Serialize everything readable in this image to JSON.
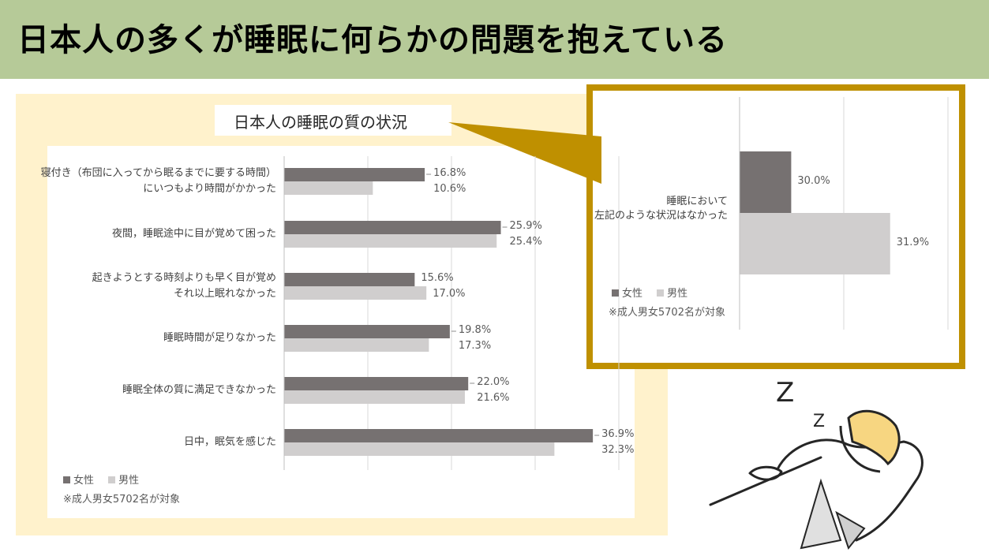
{
  "header": {
    "title": "日本人の多くが睡眠に何らかの問題を抱えている"
  },
  "colors": {
    "female": "#767171",
    "male": "#d0cece",
    "header_bg": "#b6ca98",
    "panel_bg": "#fff2cc",
    "callout_border": "#bf9000"
  },
  "chart_data": [
    {
      "type": "bar",
      "orientation": "horizontal",
      "title": "日本人の睡眠の質の状況",
      "categories": [
        [
          "寝付き（布団に入ってから眠るまでに要する時間）",
          "にいつもより時間がかかった"
        ],
        [
          "夜間，睡眠途中に目が覚めて困った"
        ],
        [
          "起きようとする時刻よりも早く目が覚め",
          "それ以上眠れなかった"
        ],
        [
          "睡眠時間が足りなかった"
        ],
        [
          "睡眠全体の質に満足できなかった"
        ],
        [
          "日中，眠気を感じた"
        ]
      ],
      "series": [
        {
          "name": "女性",
          "values": [
            16.8,
            25.9,
            15.6,
            19.8,
            22.0,
            36.9
          ],
          "labels": [
            "16.8%",
            "25.9%",
            "15.6%",
            "19.8%",
            "22.0%",
            "36.9%"
          ]
        },
        {
          "name": "男性",
          "values": [
            10.6,
            25.4,
            17.0,
            17.3,
            21.6,
            32.3
          ],
          "labels": [
            "10.6%",
            "25.4%",
            "17.0%",
            "17.3%",
            "21.6%",
            "32.3%"
          ]
        }
      ],
      "xlim": [
        0,
        40
      ],
      "grid": true,
      "legend": "bottom-left",
      "note": "※成人男女5702名が対象"
    },
    {
      "type": "bar",
      "orientation": "horizontal",
      "categories": [
        [
          "睡眠において",
          "左記のような状況はなかった"
        ]
      ],
      "series": [
        {
          "name": "女性",
          "values": [
            30.0
          ],
          "labels": [
            "30.0%"
          ]
        },
        {
          "name": "男性",
          "values": [
            31.9
          ],
          "labels": [
            "31.9%"
          ]
        }
      ],
      "grid": true,
      "legend": "bottom-left",
      "note": "※成人男女5702名が対象"
    }
  ],
  "decoration": {
    "z_big": "Z",
    "z_small": "Z"
  }
}
